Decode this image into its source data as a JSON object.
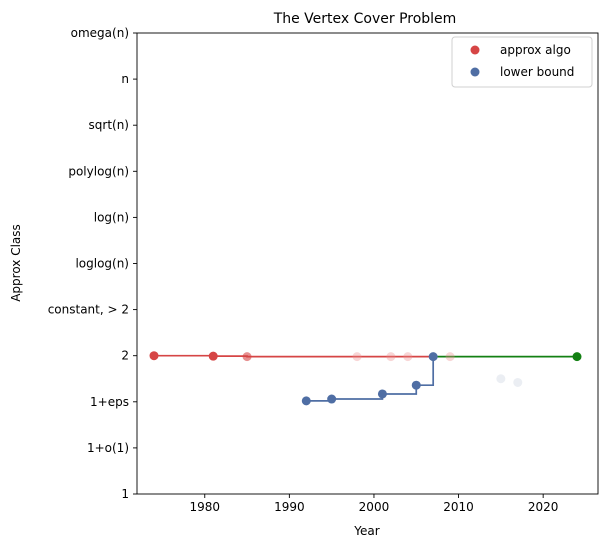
{
  "chart_data": {
    "type": "scatter",
    "title": "The Vertex Cover Problem",
    "xlabel": "Year",
    "ylabel": "Approx Class",
    "xlim": [
      1972,
      2027
    ],
    "ylim": [
      0,
      10
    ],
    "x_ticks": [
      1980,
      1990,
      2000,
      2010,
      2020
    ],
    "y_ticks": [
      "1",
      "1+o(1)",
      "1+eps",
      "2",
      "constant, > 2",
      "loglog(n)",
      "log(n)",
      "polylog(n)",
      "sqrt(n)",
      "n",
      "omega(n)"
    ],
    "grid": false,
    "legend_position": "top-right",
    "legend": [
      {
        "label": "approx algo",
        "color": "#d64545"
      },
      {
        "label": "lower bound",
        "color": "#4f6ea4"
      }
    ],
    "colors": {
      "approx": "#d64545",
      "approx_faint": "#ea8a8a",
      "lower": "#4f6ea4",
      "lower_faint": "#c5cedd",
      "frontier": "#138013"
    },
    "approx_step": [
      {
        "x": 1974,
        "y": 3
      },
      {
        "x": 1981,
        "y": 2.99
      },
      {
        "x": 1985,
        "y": 2.98
      },
      {
        "x": 2007,
        "y": 2.98
      }
    ],
    "approx_points": [
      {
        "x": 1974,
        "y": 3,
        "style": "solid"
      },
      {
        "x": 1981,
        "y": 2.99,
        "style": "solid"
      },
      {
        "x": 1985,
        "y": 2.98,
        "style": "medium"
      },
      {
        "x": 1998,
        "y": 2.98,
        "style": "faint"
      },
      {
        "x": 2002,
        "y": 2.98,
        "style": "faint"
      },
      {
        "x": 2004,
        "y": 2.98,
        "style": "faint"
      },
      {
        "x": 2009,
        "y": 2.98,
        "style": "faint"
      }
    ],
    "lower_step": [
      {
        "x": 1992,
        "y": 2.02
      },
      {
        "x": 1995,
        "y": 2.06
      },
      {
        "x": 2001,
        "y": 2.17
      },
      {
        "x": 2005,
        "y": 2.36
      },
      {
        "x": 2007,
        "y": 2.98
      }
    ],
    "lower_points": [
      {
        "x": 1992,
        "y": 2.02,
        "style": "solid"
      },
      {
        "x": 1995,
        "y": 2.06,
        "style": "solid"
      },
      {
        "x": 2001,
        "y": 2.17,
        "style": "solid"
      },
      {
        "x": 2005,
        "y": 2.36,
        "style": "solid"
      },
      {
        "x": 2007,
        "y": 2.98,
        "style": "solid"
      },
      {
        "x": 2015,
        "y": 2.5,
        "style": "faint"
      },
      {
        "x": 2017,
        "y": 2.42,
        "style": "faint"
      }
    ],
    "frontier": [
      {
        "x": 2007,
        "y": 2.98
      },
      {
        "x": 2024,
        "y": 2.98
      }
    ],
    "frontier_points": [
      {
        "x": 2024,
        "y": 2.98
      }
    ]
  }
}
